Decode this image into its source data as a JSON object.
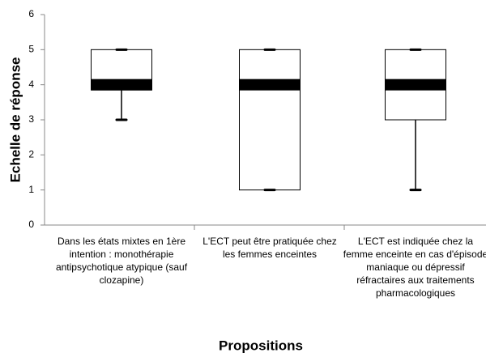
{
  "chart_data": {
    "type": "box",
    "y_label": "Echelle de réponse",
    "x_label": "Propositions",
    "categories": [
      "Dans les états mixtes en 1ère intention : monothérapie antipsychotique atypique (sauf clozapine)",
      "L'ECT peut être pratiquée chez les femmes enceintes",
      "L'ECT est indiquée chez la femme enceinte en cas d'épisode maniaque ou dépressif réfractaires aux traitements pharmacologiques"
    ],
    "boxes": [
      {
        "min": 3,
        "q1": 3.85,
        "median": 4,
        "q3": 5,
        "max": 5
      },
      {
        "min": 1,
        "q1": 1,
        "median": 4,
        "q3": 5,
        "max": 5
      },
      {
        "min": 1,
        "q1": 3,
        "median": 4,
        "q3": 5,
        "max": 5
      }
    ],
    "color": "#ffffff",
    "ylim": [
      0,
      6
    ],
    "yticks": [
      0,
      1,
      2,
      3,
      4,
      5,
      6
    ]
  }
}
